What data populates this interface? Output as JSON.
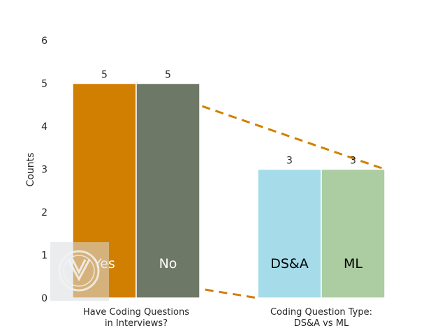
{
  "chart_data": {
    "type": "bar",
    "ylabel": "Counts",
    "ylim": [
      0,
      6
    ],
    "yticks": [
      0,
      1,
      2,
      3,
      4,
      5,
      6
    ],
    "grid": false,
    "groups": [
      {
        "label_lines": [
          "Have Coding Questions",
          "in Interviews?"
        ],
        "bars": [
          {
            "label": "Yes",
            "value": 5,
            "color": "#D17F00",
            "label_color": "#FFFFFF"
          },
          {
            "label": "No",
            "value": 5,
            "color": "#6E7867",
            "label_color": "#FFFFFF"
          }
        ]
      },
      {
        "label_lines": [
          "Coding Question Type:",
          "DS&A vs ML"
        ],
        "bars": [
          {
            "label": "DS&A",
            "value": 3,
            "color": "#A6DCEA",
            "label_color": "#000000"
          },
          {
            "label": "ML",
            "value": 3,
            "color": "#ABCDA1",
            "label_color": "#000000"
          }
        ]
      }
    ],
    "connector_color": "#D17F00",
    "watermark": "logo"
  }
}
